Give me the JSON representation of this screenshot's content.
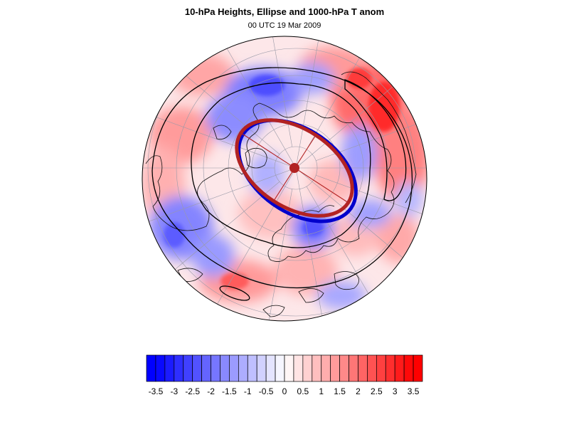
{
  "title": "10-hPa Heights, Ellipse and 1000-hPa T anom",
  "subtitle": "00 UTC 19 Mar 2009",
  "projection": "north-polar-stereographic",
  "colors": {
    "cold": "#0000ff",
    "warm": "#ff0000",
    "ellipse_observed": "#b22222",
    "ellipse_reference": "#0000cc",
    "center_marker": "#b22222"
  },
  "colorbar": {
    "min": -3.75,
    "max": 3.75,
    "step": 0.25,
    "tick_labels": [
      "-3.5",
      "-3",
      "-2.5",
      "-2",
      "-1.5",
      "-1",
      "-0.5",
      "0",
      "0.5",
      "1",
      "1.5",
      "2",
      "2.5",
      "3",
      "3.5"
    ],
    "tick_values": [
      -3.5,
      -3,
      -2.5,
      -2,
      -1.5,
      -1,
      -0.5,
      0,
      0.5,
      1,
      1.5,
      2,
      2.5,
      3,
      3.5
    ]
  }
}
